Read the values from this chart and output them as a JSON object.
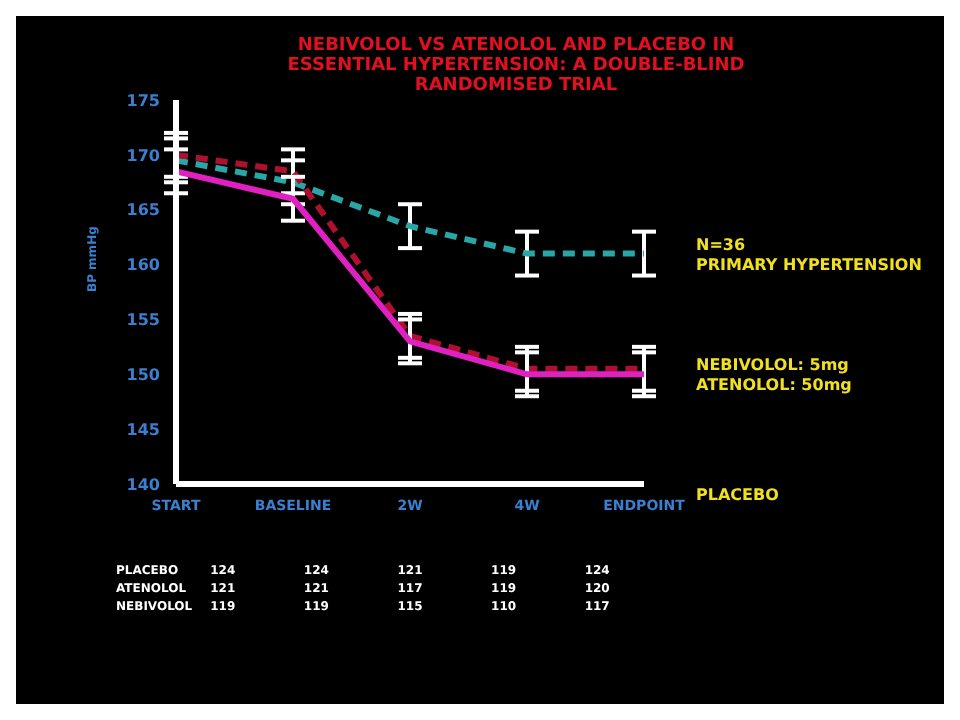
{
  "chart_data": {
    "type": "line",
    "title": "NEBIVOLOL VS ATENOLOL AND PLACEBO IN\nESSENTIAL HYPERTENSION: A DOUBLE-BLIND\nRANDOMISED TRIAL",
    "ylabel": "BP mmHg",
    "categories": [
      "START",
      "BASELINE",
      "2W",
      "4W",
      "ENDPOINT"
    ],
    "series": [
      {
        "color": "#2aa6a6",
        "line_style": "dashed",
        "values": [
          169.5,
          167.5,
          163.5,
          161,
          161
        ],
        "errors": [
          2,
          2,
          2,
          2,
          2
        ]
      },
      {
        "color": "#b01030",
        "line_style": "dashed",
        "values": [
          170,
          168.5,
          153.5,
          150.5,
          150.5
        ],
        "errors": [
          2,
          2,
          2,
          2,
          2
        ]
      },
      {
        "color": "#e020c0",
        "line_style": "solid",
        "values": [
          168.5,
          166,
          153,
          150,
          150
        ],
        "errors": [
          2,
          2,
          2,
          2,
          2
        ]
      }
    ],
    "ylim": [
      140,
      175
    ],
    "yticks": [
      140,
      145,
      150,
      155,
      160,
      165,
      170,
      175
    ],
    "grid": false,
    "legend": false,
    "marker": "none",
    "annotations": [
      "N=36\nPRIMARY HYPERTENSION",
      "NEBIVOLOL: 5mg\nATENOLOL: 50mg",
      "PLACEBO",
      "PLACEBO 124 124 121 119 124",
      "ATENOLOL 121 121 117 119 120",
      "NEBIVOLOL 119 119 115 110 117"
    ]
  }
}
